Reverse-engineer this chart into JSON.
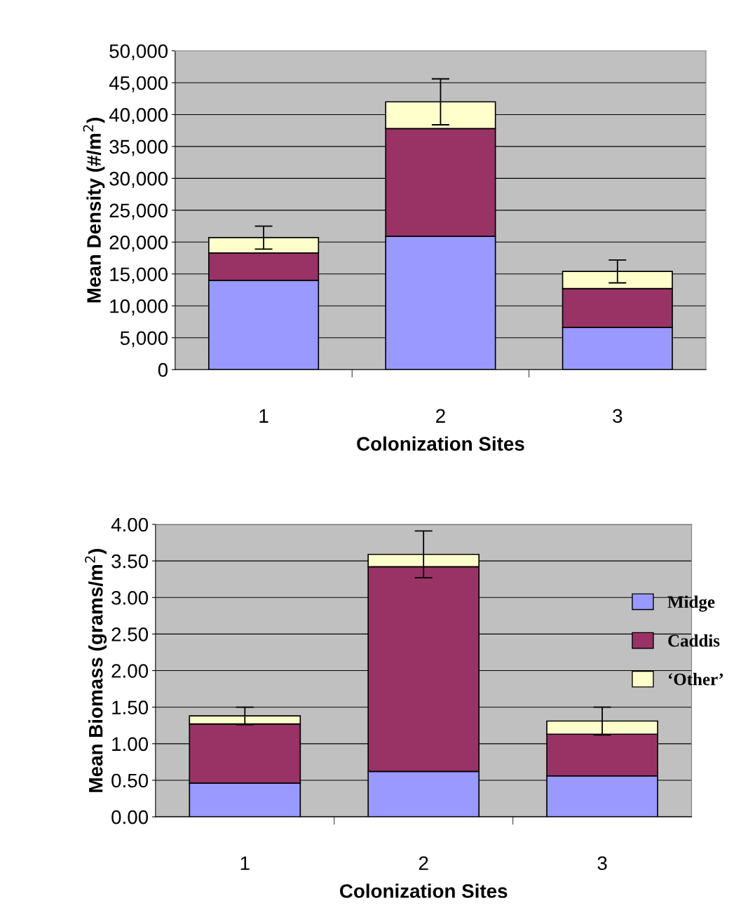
{
  "chart_data": [
    {
      "type": "bar",
      "stacked": true,
      "xlabel": "Colonization Sites",
      "ylabel": "Mean Density (#/m$^{2}$)",
      "categories": [
        "1",
        "2",
        "3"
      ],
      "series": [
        {
          "color": "#9999ff",
          "values": [
            14000,
            20900,
            6600
          ]
        },
        {
          "color": "#993366",
          "values": [
            4300,
            16900,
            6100
          ]
        },
        {
          "color": "#ffffcc",
          "values": [
            2400,
            4200,
            2700
          ],
          "errors": [
            1800,
            3600,
            1800
          ]
        }
      ],
      "ylim": [
        0,
        50000
      ],
      "yticks": [
        {
          "value": 0,
          "label": "0"
        },
        {
          "value": 5000,
          "label": "5,000"
        },
        {
          "value": 10000,
          "label": "10,000"
        },
        {
          "value": 15000,
          "label": "15,000"
        },
        {
          "value": 20000,
          "label": "20,000"
        },
        {
          "value": 25000,
          "label": "25,000"
        },
        {
          "value": 30000,
          "label": "30,000"
        },
        {
          "value": 35000,
          "label": "35,000"
        },
        {
          "value": 40000,
          "label": "40,000"
        },
        {
          "value": 45000,
          "label": "45,000"
        },
        {
          "value": 50000,
          "label": "50,000"
        }
      ],
      "grid": "y",
      "legend": false
    },
    {
      "type": "bar",
      "stacked": true,
      "xlabel": "Colonization Sites",
      "ylabel": "Mean Biomass (grams/m$^{2}$)",
      "categories": [
        "1",
        "2",
        "3"
      ],
      "series": [
        {
          "name": "Midge",
          "color": "#9999ff",
          "values": [
            0.46,
            0.62,
            0.56
          ]
        },
        {
          "name": "Caddis",
          "color": "#993366",
          "values": [
            0.81,
            2.8,
            0.57
          ]
        },
        {
          "name": "‘Other’",
          "color": "#ffffcc",
          "values": [
            0.11,
            0.17,
            0.18
          ],
          "errors": [
            0.12,
            0.32,
            0.19
          ]
        }
      ],
      "ylim": [
        0,
        4
      ],
      "yticks": [
        {
          "value": 0,
          "label": "0.00"
        },
        {
          "value": 0.5,
          "label": "0.50"
        },
        {
          "value": 1,
          "label": "1.00"
        },
        {
          "value": 1.5,
          "label": "1.50"
        },
        {
          "value": 2,
          "label": "2.00"
        },
        {
          "value": 2.5,
          "label": "2.50"
        },
        {
          "value": 3,
          "label": "3.00"
        },
        {
          "value": 3.5,
          "label": "3.50"
        },
        {
          "value": 4,
          "label": "4.00"
        }
      ],
      "grid": "y",
      "legend": "right"
    }
  ]
}
